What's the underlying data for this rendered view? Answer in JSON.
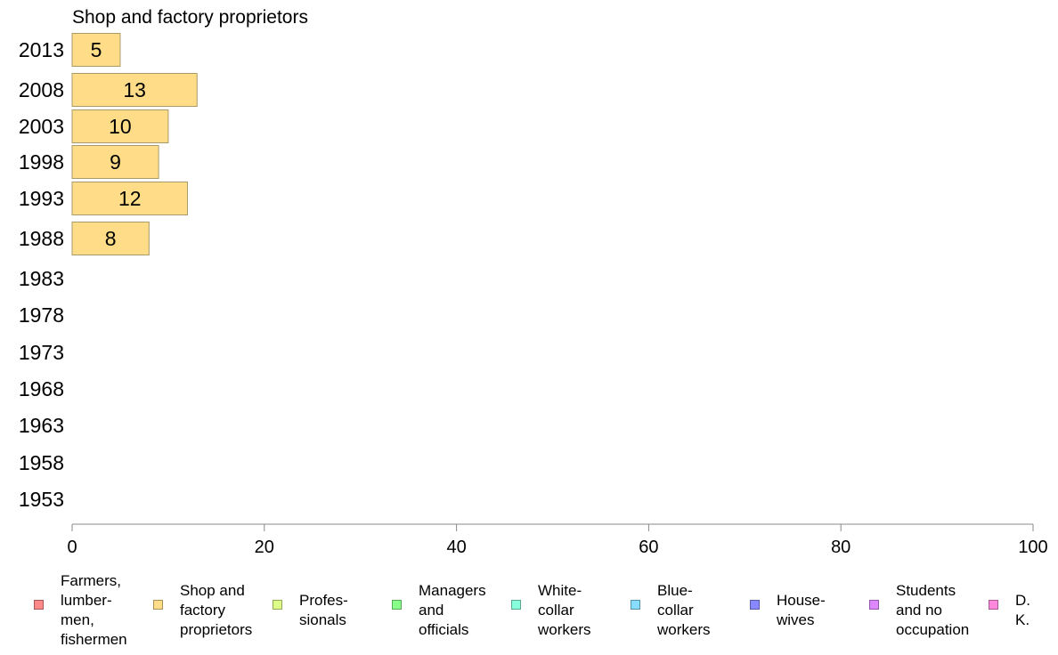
{
  "chart_data": {
    "type": "bar",
    "title": "Shop and factory proprietors",
    "categories": [
      "2013",
      "2008",
      "2003",
      "1998",
      "1993",
      "1988",
      "1983",
      "1978",
      "1973",
      "1968",
      "1963",
      "1958",
      "1953"
    ],
    "series": [
      {
        "name": "Shop and factory proprietors",
        "values": [
          5,
          13,
          10,
          9,
          12,
          8,
          null,
          null,
          null,
          null,
          null,
          null,
          null
        ],
        "color": "#ffdd88"
      }
    ],
    "xlim": [
      0,
      100
    ],
    "xticks": [
      "0",
      "20",
      "40",
      "60",
      "80",
      "100"
    ],
    "xlabel": "",
    "ylabel": "",
    "grid": false,
    "legend_position": "bottom"
  },
  "legend": [
    {
      "label": "Farmers,\nlumber-\nmen,\nfishermen",
      "color": "#ff8888"
    },
    {
      "label": "Shop and\nfactory\nproprietors",
      "color": "#ffdd88"
    },
    {
      "label": "Profes-\nsionals",
      "color": "#ddff88"
    },
    {
      "label": "Managers\nand\nofficials",
      "color": "#88ff88"
    },
    {
      "label": "White-\ncollar\nworkers",
      "color": "#88ffdd"
    },
    {
      "label": "Blue-collar\nworkers",
      "color": "#88ddff"
    },
    {
      "label": "House-\nwives",
      "color": "#8888ff"
    },
    {
      "label": "Students\nand no\noccupation",
      "color": "#dd88ff"
    },
    {
      "label": "D. K.",
      "color": "#ff88dd"
    }
  ]
}
